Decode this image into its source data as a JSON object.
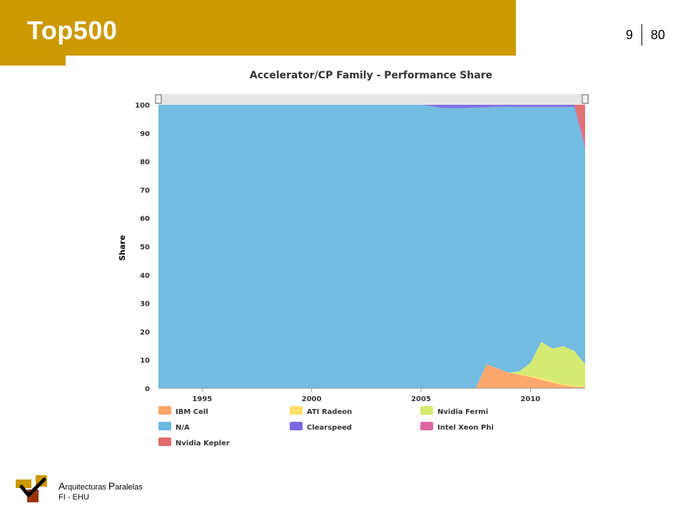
{
  "slide": {
    "title": "Top500",
    "page_current": "9",
    "page_total": "80",
    "footer_line1_cap1": "A",
    "footer_line1_rest1": "rquitecturas ",
    "footer_line1_cap2": "P",
    "footer_line1_rest2": "aralelas",
    "footer_line2": "FI - EHU"
  },
  "colors": {
    "accent": "#cc9900",
    "IBM Cell": "#ffa366",
    "ATI Radeon": "#ffe066",
    "Nvidia Fermi": "#d4ea6b",
    "N/A": "#6bb8e0",
    "Clearspeed": "#7b68e0",
    "Intel Xeon Phi": "#e066a3",
    "Nvidia Kepler": "#e06b6b"
  },
  "chart_data": {
    "type": "area",
    "title": "Accelerator/CP Family - Performance Share",
    "ylabel": "Share",
    "xlabel": "",
    "xlim": [
      1993.0,
      2012.5
    ],
    "ylim": [
      0,
      100
    ],
    "yticks": [
      "0",
      "10",
      "20",
      "30",
      "40",
      "50",
      "60",
      "70",
      "80",
      "90",
      "100"
    ],
    "xticks": [
      "1995",
      "2000",
      "2005",
      "2010"
    ],
    "grid": true,
    "stacked": true,
    "legend_position": "bottom",
    "x": [
      1993.0,
      2005.0,
      2005.5,
      2006.0,
      2007.0,
      2007.5,
      2008.0,
      2008.5,
      2009.0,
      2009.5,
      2010.0,
      2010.5,
      2011.0,
      2011.5,
      2012.0,
      2012.5
    ],
    "series": [
      {
        "name": "IBM Cell",
        "values": [
          0,
          0,
          0,
          0,
          0,
          0,
          8.5,
          7.0,
          5.5,
          4.8,
          4.0,
          3.0,
          2.0,
          1.0,
          0.6,
          0.4
        ]
      },
      {
        "name": "ATI Radeon",
        "values": [
          0,
          0,
          0,
          0,
          0,
          0,
          0,
          0,
          0,
          0,
          0.5,
          0.6,
          0.5,
          0.4,
          0.3,
          0.2
        ]
      },
      {
        "name": "Nvidia Fermi",
        "values": [
          0,
          0,
          0,
          0,
          0,
          0,
          0,
          0,
          0,
          1.2,
          4.5,
          12.8,
          11.5,
          13.5,
          12.3,
          8.0
        ]
      },
      {
        "name": "N/A",
        "values": [
          100,
          100,
          99.5,
          98.8,
          98.8,
          99.0,
          90.6,
          92.3,
          93.8,
          93.2,
          90.2,
          82.8,
          85.2,
          84.3,
          86.0,
          76.0
        ]
      },
      {
        "name": "Clearspeed",
        "values": [
          0,
          0,
          0.5,
          1.2,
          1.2,
          1.0,
          0.9,
          0.7,
          0.7,
          0.8,
          0.8,
          0.8,
          0.8,
          0.8,
          0.8,
          0.4
        ]
      },
      {
        "name": "Intel Xeon Phi",
        "values": [
          0,
          0,
          0,
          0,
          0,
          0,
          0,
          0,
          0,
          0,
          0,
          0,
          0,
          0,
          0,
          1.5
        ]
      },
      {
        "name": "Nvidia Kepler",
        "values": [
          0,
          0,
          0,
          0,
          0,
          0,
          0,
          0,
          0,
          0,
          0,
          0,
          0,
          0,
          0,
          13.5
        ]
      }
    ],
    "legend": [
      "IBM Cell",
      "ATI Radeon",
      "Nvidia Fermi",
      "N/A",
      "Clearspeed",
      "Intel Xeon Phi",
      "Nvidia Kepler"
    ]
  }
}
